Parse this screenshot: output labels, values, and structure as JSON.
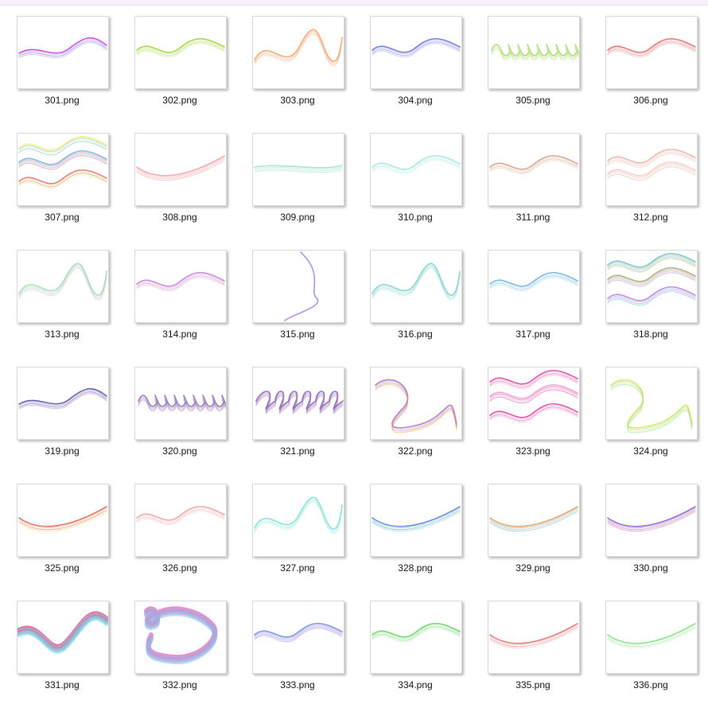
{
  "files": [
    {
      "name": "301.png",
      "colors": [
        "#c63be0",
        "#7fb7f0",
        "#a6e8e0"
      ],
      "style": "smoke"
    },
    {
      "name": "302.png",
      "colors": [
        "#9ed23a",
        "#c4e57a"
      ],
      "style": "wave"
    },
    {
      "name": "303.png",
      "colors": [
        "#f5a06a",
        "#f7c7a0"
      ],
      "style": "curl"
    },
    {
      "name": "304.png",
      "colors": [
        "#6a6ee0",
        "#a8a9f0"
      ],
      "style": "wave"
    },
    {
      "name": "305.png",
      "colors": [
        "#a6d86a",
        "#cfe9a6"
      ],
      "style": "zigzag"
    },
    {
      "name": "306.png",
      "colors": [
        "#e06a6a",
        "#f0a0a0"
      ],
      "style": "wave"
    },
    {
      "name": "307.png",
      "colors": [
        "#f0f07a",
        "#6ab4f0",
        "#e07070"
      ],
      "style": "triple"
    },
    {
      "name": "308.png",
      "colors": [
        "#f0a0a8"
      ],
      "style": "ribbon"
    },
    {
      "name": "309.png",
      "colors": [
        "#a0e0d0"
      ],
      "style": "line"
    },
    {
      "name": "310.png",
      "colors": [
        "#a0e8d8",
        "#c8f0e8"
      ],
      "style": "wave"
    },
    {
      "name": "311.png",
      "colors": [
        "#d0a088",
        "#e8c8b8"
      ],
      "style": "wave"
    },
    {
      "name": "312.png",
      "colors": [
        "#e8b0a8",
        "#f0d0c8"
      ],
      "style": "double"
    },
    {
      "name": "313.png",
      "colors": [
        "#a0e0a8",
        "#d0c0f0"
      ],
      "style": "curl"
    },
    {
      "name": "314.png",
      "colors": [
        "#c080e0",
        "#f0a0c0"
      ],
      "style": "wave"
    },
    {
      "name": "315.png",
      "colors": [
        "#a080e0",
        "#c0a0f0"
      ],
      "style": "vertical"
    },
    {
      "name": "316.png",
      "colors": [
        "#80d0c0",
        "#a0e0e8"
      ],
      "style": "curl"
    },
    {
      "name": "317.png",
      "colors": [
        "#70b0e0",
        "#a0d8f0"
      ],
      "style": "wave"
    },
    {
      "name": "318.png",
      "colors": [
        "#70c0d0",
        "#a0b060",
        "#c080e0"
      ],
      "style": "triple"
    },
    {
      "name": "319.png",
      "colors": [
        "#5050a0",
        "#b080d0"
      ],
      "style": "smoke"
    },
    {
      "name": "320.png",
      "colors": [
        "#8070c0",
        "#c090b0"
      ],
      "style": "zigzag"
    },
    {
      "name": "321.png",
      "colors": [
        "#8060b0",
        "#b080c0"
      ],
      "style": "coil"
    },
    {
      "name": "322.png",
      "colors": [
        "#a070e0",
        "#f0a040",
        "#e070c0"
      ],
      "style": "loop"
    },
    {
      "name": "323.png",
      "colors": [
        "#e040a0",
        "#f0a0d0"
      ],
      "style": "triple"
    },
    {
      "name": "324.png",
      "colors": [
        "#e0e060",
        "#80e080",
        "#e08080"
      ],
      "style": "loop"
    },
    {
      "name": "325.png",
      "colors": [
        "#e06060",
        "#f0d060"
      ],
      "style": "ribbon"
    },
    {
      "name": "326.png",
      "colors": [
        "#f0a0a0",
        "#f8c8c8"
      ],
      "style": "wave"
    },
    {
      "name": "327.png",
      "colors": [
        "#80e0d0",
        "#b0f0e8"
      ],
      "style": "curl"
    },
    {
      "name": "328.png",
      "colors": [
        "#6080e0",
        "#60e0a0",
        "#e060c0"
      ],
      "style": "ribbon"
    },
    {
      "name": "329.png",
      "colors": [
        "#e0a060",
        "#60b0e0",
        "#a060e0"
      ],
      "style": "ribbon"
    },
    {
      "name": "330.png",
      "colors": [
        "#8060e0",
        "#e06080",
        "#e0c060"
      ],
      "style": "ribbon"
    },
    {
      "name": "331.png",
      "colors": [
        "#f06090",
        "#60e0f0",
        "#f0e060"
      ],
      "style": "rainbow"
    },
    {
      "name": "332.png",
      "colors": [
        "#f080c0",
        "#80c0f0",
        "#f0e080"
      ],
      "style": "swirl"
    },
    {
      "name": "333.png",
      "colors": [
        "#6090e0",
        "#c070e0"
      ],
      "style": "wave"
    },
    {
      "name": "334.png",
      "colors": [
        "#60d060",
        "#a0e8a0"
      ],
      "style": "wave"
    },
    {
      "name": "335.png",
      "colors": [
        "#e07070",
        "#f0b0b0"
      ],
      "style": "ribbon"
    },
    {
      "name": "336.png",
      "colors": [
        "#80e080",
        "#c0f0c0"
      ],
      "style": "ribbon"
    }
  ]
}
